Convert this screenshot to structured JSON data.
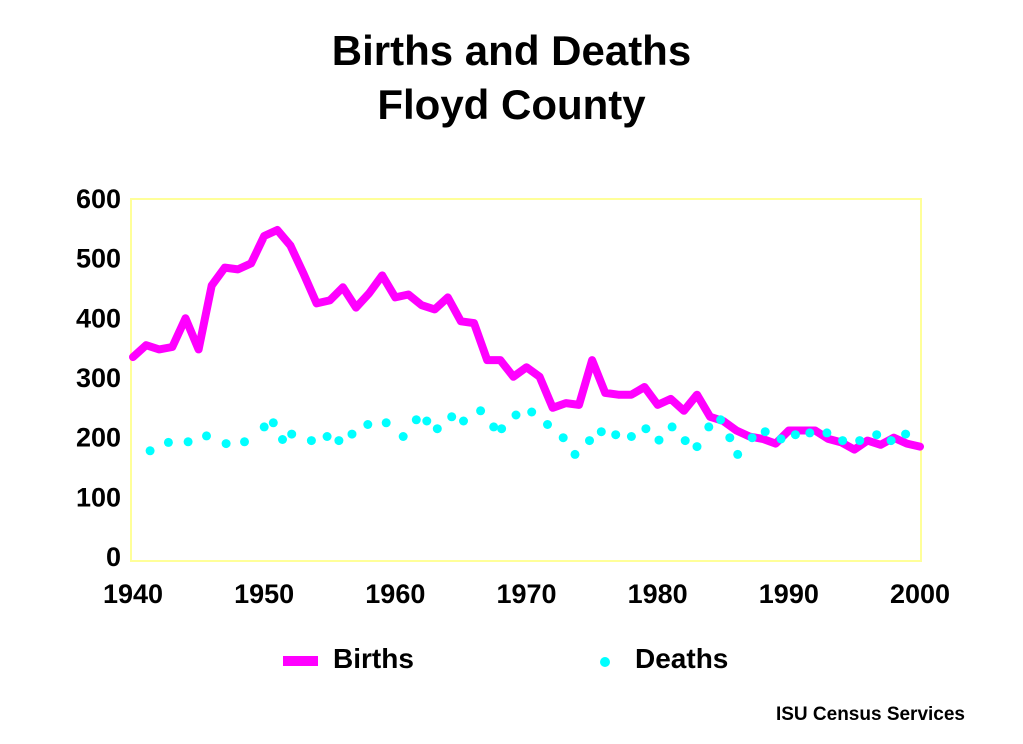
{
  "title_line1": "Births and Deaths",
  "title_line2": "Floyd County",
  "footer": "ISU Census Services",
  "chart_data": {
    "type": "line",
    "title": "Births and Deaths Floyd County",
    "xlabel": "",
    "ylabel": "",
    "xlim": [
      1940,
      2000
    ],
    "ylim": [
      0,
      600
    ],
    "x_ticks": [
      1940,
      1950,
      1960,
      1970,
      1980,
      1990,
      2000
    ],
    "y_ticks": [
      0,
      100,
      200,
      300,
      400,
      500,
      600
    ],
    "grid": false,
    "legend_position": "bottom",
    "plot_border_color": "#ffff99",
    "series": [
      {
        "name": "Births",
        "style": "line",
        "color": "#ff00ff",
        "x": [
          1940,
          1941,
          1942,
          1943,
          1944,
          1945,
          1946,
          1947,
          1948,
          1949,
          1950,
          1951,
          1952,
          1953,
          1954,
          1955,
          1956,
          1957,
          1958,
          1959,
          1960,
          1961,
          1962,
          1963,
          1964,
          1965,
          1966,
          1967,
          1968,
          1969,
          1970,
          1971,
          1972,
          1973,
          1974,
          1975,
          1976,
          1977,
          1978,
          1979,
          1980,
          1981,
          1982,
          1983,
          1984,
          1985,
          1986,
          1987,
          1988,
          1989,
          1990,
          1991,
          1992,
          1993,
          1994,
          1995,
          1996,
          1997,
          1998,
          1999,
          2000
        ],
        "values": [
          335,
          355,
          348,
          352,
          400,
          348,
          455,
          485,
          482,
          492,
          538,
          548,
          522,
          475,
          425,
          430,
          452,
          418,
          442,
          472,
          435,
          440,
          422,
          415,
          435,
          395,
          392,
          330,
          330,
          302,
          318,
          302,
          250,
          258,
          255,
          330,
          275,
          272,
          272,
          285,
          255,
          265,
          245,
          272,
          235,
          228,
          212,
          202,
          198,
          190,
          212,
          212,
          212,
          198,
          192,
          180,
          195,
          188,
          200,
          190,
          185
        ]
      },
      {
        "name": "Deaths",
        "style": "dots",
        "color": "#00ffff",
        "x": [
          1941.3,
          1942.7,
          1944.2,
          1945.6,
          1947.1,
          1948.5,
          1950.0,
          1950.7,
          1951.4,
          1952.1,
          1953.6,
          1954.8,
          1955.7,
          1956.7,
          1957.9,
          1959.3,
          1960.6,
          1961.6,
          1962.4,
          1963.2,
          1964.3,
          1965.2,
          1966.5,
          1967.5,
          1968.1,
          1969.2,
          1970.4,
          1971.6,
          1972.8,
          1973.7,
          1974.8,
          1975.7,
          1976.8,
          1978.0,
          1979.1,
          1980.1,
          1981.1,
          1982.1,
          1983.0,
          1983.9,
          1984.8,
          1985.5,
          1986.1,
          1987.2,
          1988.2,
          1989.4,
          1990.5,
          1991.6,
          1992.9,
          1994.1,
          1995.4,
          1996.7,
          1997.8,
          1998.9
        ],
        "values": [
          178,
          192,
          193,
          203,
          190,
          193,
          218,
          225,
          197,
          206,
          195,
          202,
          195,
          206,
          222,
          225,
          202,
          230,
          228,
          215,
          235,
          228,
          245,
          218,
          215,
          238,
          243,
          222,
          200,
          172,
          195,
          210,
          205,
          202,
          215,
          196,
          218,
          195,
          185,
          218,
          230,
          200,
          172,
          200,
          210,
          198,
          205,
          208,
          208,
          195,
          195,
          205,
          195,
          206
        ]
      }
    ]
  }
}
